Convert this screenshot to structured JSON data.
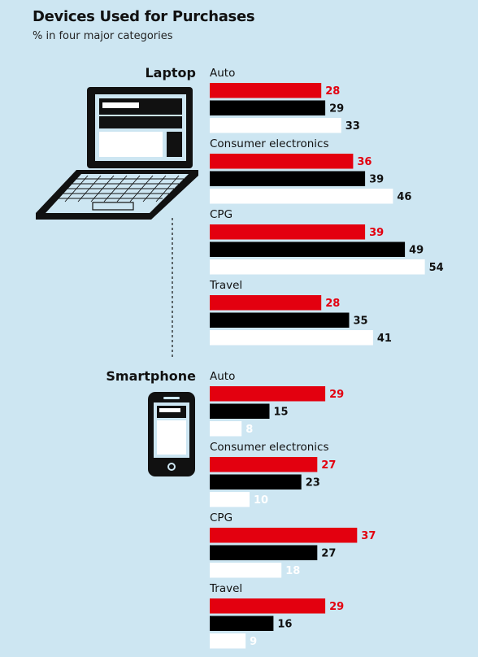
{
  "title": "Devices Used for Purchases",
  "subtitle": "% in four major categories",
  "colors": {
    "background": "#cde6f2",
    "series_1": "#e3000f",
    "series_2": "#000000",
    "series_3": "#ffffff"
  },
  "chart_data": [
    {
      "type": "bar",
      "orientation": "horizontal",
      "device": "Laptop",
      "device_icon": "laptop-icon",
      "categories": [
        "Auto",
        "Consumer electronics",
        "CPG",
        "Travel"
      ],
      "series": [
        {
          "color": "#e3000f",
          "values": [
            28,
            36,
            39,
            28
          ]
        },
        {
          "color": "#000000",
          "values": [
            29,
            39,
            49,
            35
          ]
        },
        {
          "color": "#ffffff",
          "values": [
            33,
            46,
            54,
            41
          ]
        }
      ],
      "xlim": [
        0,
        60
      ],
      "grid": false,
      "legend": "none"
    },
    {
      "type": "bar",
      "orientation": "horizontal",
      "device": "Smartphone",
      "device_icon": "smartphone-icon",
      "categories": [
        "Auto",
        "Consumer electronics",
        "CPG",
        "Travel"
      ],
      "series": [
        {
          "color": "#e3000f",
          "values": [
            29,
            27,
            37,
            29
          ]
        },
        {
          "color": "#000000",
          "values": [
            15,
            23,
            27,
            16
          ]
        },
        {
          "color": "#ffffff",
          "values": [
            8,
            10,
            18,
            9
          ]
        }
      ],
      "xlim": [
        0,
        60
      ],
      "grid": false,
      "legend": "none"
    }
  ]
}
